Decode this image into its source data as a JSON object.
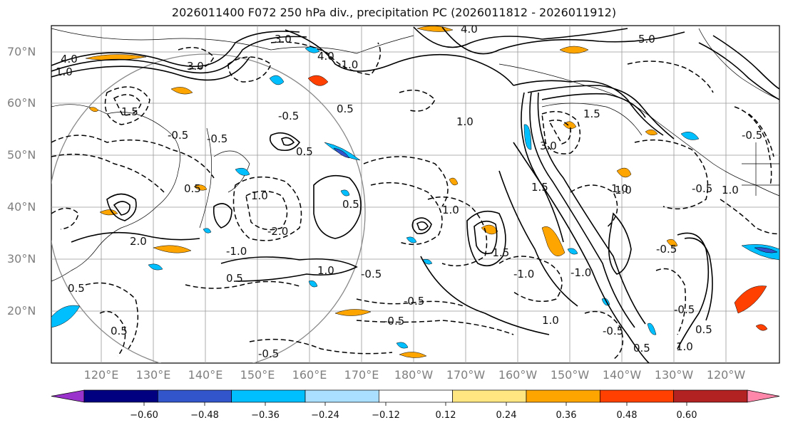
{
  "title": "2026011400 F072 250 hPa div., precipitation PC (2026011812 - 2026011912)",
  "lat_labels": [
    "70°N",
    "60°N",
    "50°N",
    "40°N",
    "30°N",
    "20°N"
  ],
  "lon_labels": [
    "120°E",
    "130°E",
    "140°E",
    "150°E",
    "160°E",
    "170°E",
    "180°W",
    "170°W",
    "160°W",
    "150°W",
    "140°W",
    "130°W",
    "120°W"
  ],
  "colorbar": {
    "colors": [
      "#9933cc",
      "#000080",
      "#3355cc",
      "#00bfff",
      "#aadfff",
      "#ffffff",
      "#ffe680",
      "#ffa500",
      "#ff4000",
      "#b22222",
      "#ff88aa"
    ],
    "ticks": [
      "−0.60",
      "−0.48",
      "−0.36",
      "−0.24",
      "−0.12",
      "0.12",
      "0.24",
      "0.36",
      "0.48",
      "0.60"
    ]
  },
  "contour_labels": [
    "4.0",
    "5.0",
    "3.0",
    "4.0",
    "1.0",
    "4.0",
    "3.0",
    "-1.0",
    "0.5",
    "1.0",
    "1.5",
    "-0.5",
    "-0.5",
    "-0.5",
    "0.5",
    "1.0",
    "-2.0",
    "-1.0",
    "0.5",
    "1.5",
    "1.0",
    "2.0",
    "3.0",
    "1.5",
    "1.0",
    "-1.0",
    "-1.5",
    "-1.0",
    "-0.5",
    "-0.5",
    "0.5",
    "-0.5",
    "0.5",
    "-0.5",
    "-0.5",
    "1.0",
    "1.0",
    "1.0",
    "0.5",
    "0.5",
    "-0.5",
    "0.5",
    "1.0",
    "0.5",
    "1.0",
    "-0.5",
    "-0.5",
    "-0.5"
  ]
}
